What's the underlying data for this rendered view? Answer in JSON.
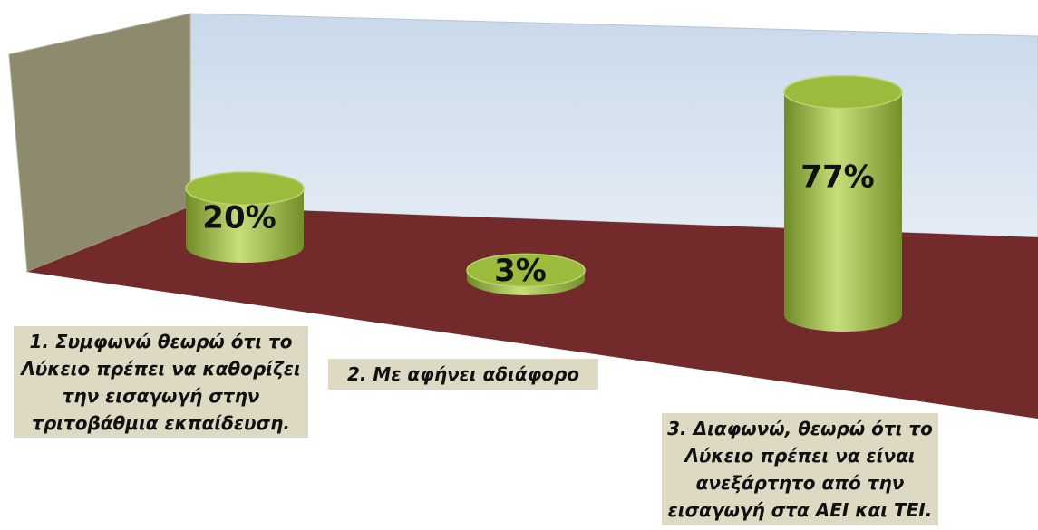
{
  "chart_data": {
    "type": "bar",
    "categories": [
      "1. Συμφωνώ θεωρώ ότι το Λύκειο πρέπει να καθορίζει την εισαγωγή στην τριτοβάθμια εκπαίδευση.",
      "2. Με αφήνει αδιάφορο",
      "3. Διαφωνώ, θεωρώ ότι το Λύκειο πρέπει να είναι ανεξάρτητο από την εισαγωγή στα ΑΕΙ και ΤΕΙ."
    ],
    "values": [
      20,
      3,
      77
    ],
    "value_labels": [
      "20%",
      "3%",
      "77%"
    ],
    "color": "#9bbb3c"
  }
}
